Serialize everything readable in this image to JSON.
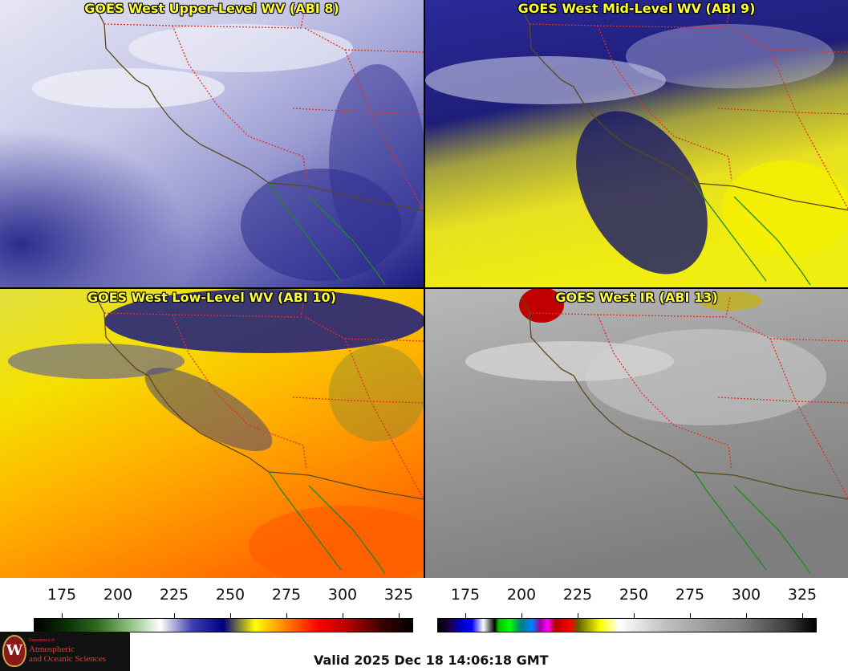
{
  "panels": [
    {
      "key": "p1",
      "title": "GOES West Upper-Level WV (ABI 8)",
      "style": "wv_upper"
    },
    {
      "key": "p2",
      "title": "GOES West Mid-Level WV (ABI 9)",
      "style": "wv_mid"
    },
    {
      "key": "p3",
      "title": "GOES West Low-Level WV (ABI 10)",
      "style": "wv_low"
    },
    {
      "key": "p4",
      "title": "GOES West IR (ABI 13)",
      "style": "ir"
    }
  ],
  "colorbars": {
    "wv": {
      "ticks": [
        "175",
        "200",
        "225",
        "250",
        "275",
        "300",
        "325"
      ],
      "stops": [
        "#000000",
        "#0b2e07",
        "#2f6b1d",
        "#8cc07a",
        "#ffffff",
        "#4040b0",
        "#000080",
        "#ffff00",
        "#ff8000",
        "#ff0000",
        "#b00000",
        "#400000",
        "#000000"
      ]
    },
    "ir": {
      "ticks": [
        "175",
        "200",
        "225",
        "250",
        "275",
        "300",
        "325"
      ]
    }
  },
  "colors": {
    "border_state": "#e03020",
    "coast": "#5a4a1a",
    "mexico_coast": "#1e8a1e"
  },
  "footer": {
    "logo_dept": "Department of",
    "logo_line1": "Atmospheric",
    "logo_line2": "and Oceanic Sciences",
    "logo_seal_letter": "W",
    "valid": "Valid 2025 Dec 18 14:06:18 GMT"
  }
}
